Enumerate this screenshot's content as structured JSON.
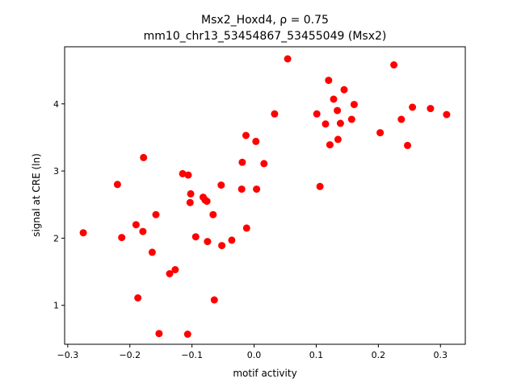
{
  "chart_data": {
    "type": "scatter",
    "title_line1": "Msx2_Hoxd4, ρ = 0.75",
    "title_line2": "mm10_chr13_53454867_53455049 (Msx2)",
    "xlabel": "motif activity",
    "ylabel": "signal at CRE (ln)",
    "xlim": [
      -0.305,
      0.34
    ],
    "ylim": [
      0.42,
      4.85
    ],
    "xticks": [
      -0.3,
      -0.2,
      -0.1,
      0.0,
      0.1,
      0.2,
      0.3
    ],
    "xtick_labels": [
      "−0.3",
      "−0.2",
      "−0.1",
      "0.0",
      "0.1",
      "0.2",
      "0.3"
    ],
    "yticks": [
      1,
      2,
      3,
      4
    ],
    "ytick_labels": [
      "1",
      "2",
      "3",
      "4"
    ],
    "marker_color": "#ff0000",
    "grid": false,
    "legend": "none",
    "points": [
      {
        "x": -0.275,
        "y": 2.08
      },
      {
        "x": -0.22,
        "y": 2.8
      },
      {
        "x": -0.213,
        "y": 2.01
      },
      {
        "x": -0.19,
        "y": 2.2
      },
      {
        "x": -0.187,
        "y": 1.11
      },
      {
        "x": -0.179,
        "y": 2.1
      },
      {
        "x": -0.178,
        "y": 3.2
      },
      {
        "x": -0.164,
        "y": 1.79
      },
      {
        "x": -0.158,
        "y": 2.35
      },
      {
        "x": -0.153,
        "y": 0.58
      },
      {
        "x": -0.136,
        "y": 1.47
      },
      {
        "x": -0.127,
        "y": 1.53
      },
      {
        "x": -0.115,
        "y": 2.96
      },
      {
        "x": -0.107,
        "y": 0.57
      },
      {
        "x": -0.106,
        "y": 2.94
      },
      {
        "x": -0.103,
        "y": 2.53
      },
      {
        "x": -0.102,
        "y": 2.66
      },
      {
        "x": -0.094,
        "y": 2.02
      },
      {
        "x": -0.082,
        "y": 2.61
      },
      {
        "x": -0.079,
        "y": 2.57
      },
      {
        "x": -0.076,
        "y": 2.55
      },
      {
        "x": -0.075,
        "y": 1.95
      },
      {
        "x": -0.066,
        "y": 2.35
      },
      {
        "x": -0.064,
        "y": 1.08
      },
      {
        "x": -0.053,
        "y": 2.79
      },
      {
        "x": -0.052,
        "y": 1.89
      },
      {
        "x": -0.036,
        "y": 1.97
      },
      {
        "x": -0.02,
        "y": 2.73
      },
      {
        "x": -0.019,
        "y": 3.13
      },
      {
        "x": -0.013,
        "y": 3.53
      },
      {
        "x": -0.012,
        "y": 2.15
      },
      {
        "x": 0.003,
        "y": 3.44
      },
      {
        "x": 0.004,
        "y": 2.73
      },
      {
        "x": 0.016,
        "y": 3.11
      },
      {
        "x": 0.033,
        "y": 3.85
      },
      {
        "x": 0.054,
        "y": 4.67
      },
      {
        "x": 0.101,
        "y": 3.85
      },
      {
        "x": 0.106,
        "y": 2.77
      },
      {
        "x": 0.115,
        "y": 3.7
      },
      {
        "x": 0.12,
        "y": 4.35
      },
      {
        "x": 0.122,
        "y": 3.39
      },
      {
        "x": 0.128,
        "y": 4.07
      },
      {
        "x": 0.134,
        "y": 3.9
      },
      {
        "x": 0.135,
        "y": 3.47
      },
      {
        "x": 0.139,
        "y": 3.71
      },
      {
        "x": 0.145,
        "y": 4.21
      },
      {
        "x": 0.157,
        "y": 3.77
      },
      {
        "x": 0.161,
        "y": 3.99
      },
      {
        "x": 0.203,
        "y": 3.57
      },
      {
        "x": 0.225,
        "y": 4.58
      },
      {
        "x": 0.237,
        "y": 3.77
      },
      {
        "x": 0.247,
        "y": 3.38
      },
      {
        "x": 0.255,
        "y": 3.95
      },
      {
        "x": 0.284,
        "y": 3.93
      },
      {
        "x": 0.31,
        "y": 3.84
      }
    ]
  }
}
